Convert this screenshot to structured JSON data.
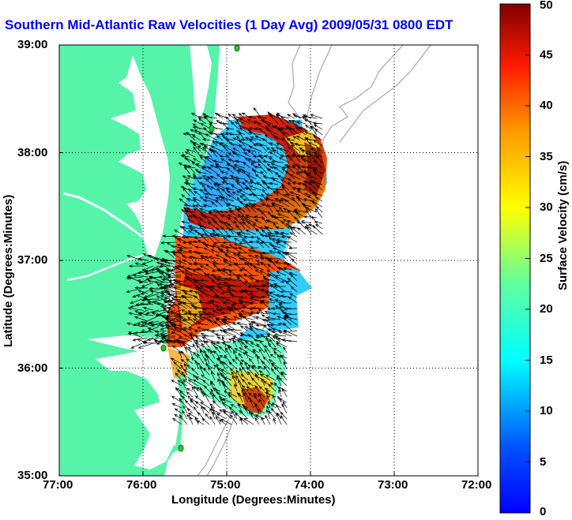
{
  "title": "Southern Mid-Atlantic Raw Velocities (1 Day Avg) 2009/05/31 0800 EDT",
  "map": {
    "x_axis": {
      "label": "Longitude (Degrees:Minutes)",
      "ticks": [
        "77:00",
        "76:00",
        "75:00",
        "74:00",
        "73:00",
        "72:00"
      ],
      "range": [
        -77,
        -72
      ]
    },
    "y_axis": {
      "label": "Latitude (Degrees:Minutes)",
      "ticks": [
        "35:00",
        "36:00",
        "37:00",
        "38:00",
        "39:00"
      ],
      "range": [
        35,
        39
      ]
    },
    "grid": "dotted",
    "colors": {
      "land": "#55f4a8",
      "water": "#ffffff",
      "bathymetry": "#aaaaaa",
      "arrows": "#000000",
      "stations": "#22cc22"
    }
  },
  "colorbar": {
    "label": "Surface Velocity (cm/s)",
    "ticks": [
      "0",
      "5",
      "10",
      "15",
      "20",
      "25",
      "30",
      "35",
      "40",
      "45",
      "50"
    ],
    "range": [
      0,
      50
    ],
    "colormap": "jet"
  }
}
